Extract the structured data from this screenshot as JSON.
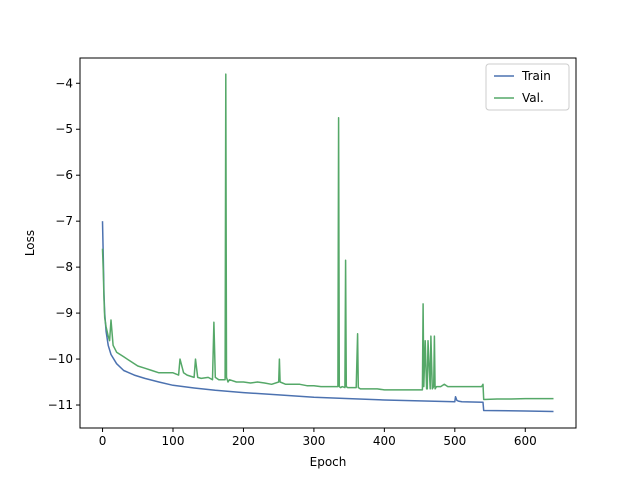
{
  "chart_data": {
    "type": "line",
    "title": "",
    "xlabel": "Epoch",
    "ylabel": "Loss",
    "xlim": [
      -32,
      672
    ],
    "ylim": [
      -11.5,
      -3.45
    ],
    "xticks": [
      0,
      100,
      200,
      300,
      400,
      500,
      600
    ],
    "yticks": [
      -11,
      -10,
      -9,
      -8,
      -7,
      -6,
      -5,
      -4
    ],
    "xtick_labels": [
      "0",
      "100",
      "200",
      "300",
      "400",
      "500",
      "600"
    ],
    "ytick_labels": [
      "−11",
      "−10",
      "−9",
      "−8",
      "−7",
      "−6",
      "−5",
      "−4"
    ],
    "grid": false,
    "legend_position": "top-right",
    "series": [
      {
        "name": "Train",
        "color": "#4c72b0",
        "x": [
          0,
          1,
          2,
          3,
          5,
          8,
          12,
          20,
          30,
          45,
          60,
          80,
          100,
          130,
          160,
          200,
          250,
          300,
          350,
          400,
          450,
          500,
          501,
          503,
          506,
          510,
          540,
          541,
          600,
          640
        ],
        "y": [
          -7.0,
          -7.8,
          -8.6,
          -9.0,
          -9.4,
          -9.7,
          -9.9,
          -10.1,
          -10.25,
          -10.35,
          -10.42,
          -10.5,
          -10.57,
          -10.63,
          -10.68,
          -10.73,
          -10.78,
          -10.83,
          -10.86,
          -10.89,
          -10.91,
          -10.93,
          -10.82,
          -10.9,
          -10.92,
          -10.93,
          -10.94,
          -11.12,
          -11.13,
          -11.14
        ]
      },
      {
        "name": "Val.",
        "color": "#55a868",
        "x": [
          0,
          1,
          2,
          3,
          5,
          8,
          10,
          12,
          15,
          20,
          30,
          40,
          50,
          60,
          70,
          80,
          90,
          100,
          108,
          110,
          115,
          120,
          130,
          132,
          135,
          140,
          150,
          156,
          158,
          160,
          165,
          170,
          174,
          175,
          176,
          178,
          180,
          190,
          200,
          210,
          220,
          230,
          240,
          250,
          251,
          252,
          260,
          270,
          280,
          290,
          300,
          310,
          320,
          330,
          334,
          335,
          336,
          338,
          340,
          344,
          345,
          346,
          348,
          350,
          360,
          362,
          363,
          364,
          366,
          370,
          380,
          390,
          400,
          410,
          420,
          430,
          440,
          450,
          454,
          455,
          456,
          458,
          460,
          461,
          462,
          465,
          466,
          468,
          470,
          471,
          472,
          474,
          480,
          485,
          490,
          500,
          510,
          520,
          530,
          538,
          540,
          541,
          560,
          580,
          600,
          620,
          640
        ],
        "y": [
          -7.6,
          -8.1,
          -8.7,
          -9.1,
          -9.3,
          -9.5,
          -9.6,
          -9.15,
          -9.7,
          -9.85,
          -9.95,
          -10.05,
          -10.15,
          -10.2,
          -10.25,
          -10.3,
          -10.3,
          -10.3,
          -10.35,
          -10.0,
          -10.3,
          -10.35,
          -10.4,
          -10.0,
          -10.4,
          -10.42,
          -10.4,
          -10.45,
          -9.2,
          -10.4,
          -10.45,
          -10.45,
          -10.45,
          -3.8,
          -10.4,
          -10.5,
          -10.45,
          -10.5,
          -10.5,
          -10.52,
          -10.5,
          -10.52,
          -10.55,
          -10.5,
          -10.0,
          -10.5,
          -10.55,
          -10.55,
          -10.55,
          -10.58,
          -10.58,
          -10.6,
          -10.6,
          -10.6,
          -10.6,
          -4.75,
          -10.6,
          -10.62,
          -10.6,
          -10.62,
          -7.85,
          -10.6,
          -10.62,
          -10.62,
          -10.62,
          -9.45,
          -10.62,
          -10.63,
          -10.65,
          -10.65,
          -10.65,
          -10.65,
          -10.67,
          -10.67,
          -10.67,
          -10.67,
          -10.67,
          -10.67,
          -10.67,
          -8.8,
          -10.6,
          -9.6,
          -10.65,
          -10.65,
          -9.6,
          -10.65,
          -9.5,
          -10.65,
          -10.6,
          -9.5,
          -10.65,
          -10.6,
          -10.6,
          -10.55,
          -10.6,
          -10.6,
          -10.6,
          -10.6,
          -10.6,
          -10.6,
          -10.55,
          -10.88,
          -10.87,
          -10.87,
          -10.86,
          -10.86,
          -10.86
        ]
      }
    ]
  }
}
